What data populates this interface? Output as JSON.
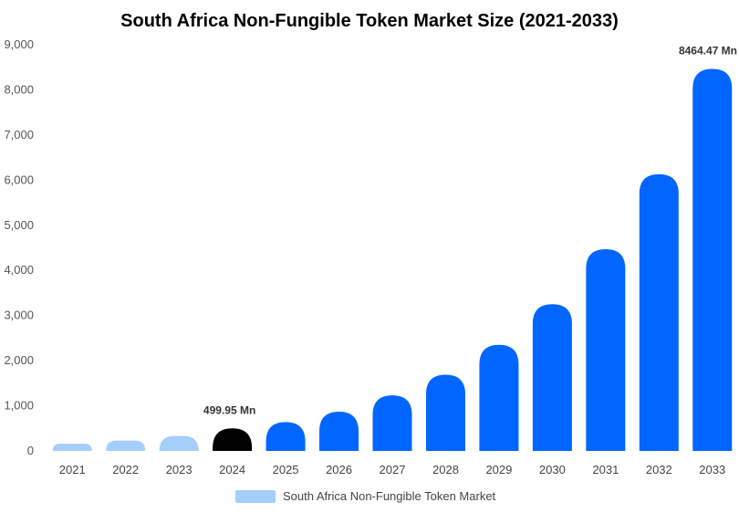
{
  "chart_data": {
    "type": "bar",
    "title": "South Africa Non-Fungible Token Market Size (2021-2033)",
    "xlabel": "",
    "ylabel": "",
    "ylim": [
      0,
      9000
    ],
    "yticks": [
      0,
      1000,
      2000,
      3000,
      4000,
      5000,
      6000,
      7000,
      8000,
      9000
    ],
    "ytick_labels": [
      "0",
      "1,000",
      "2,000",
      "3,000",
      "4,000",
      "5,000",
      "6,000",
      "7,000",
      "8,000",
      "9,000"
    ],
    "categories": [
      "2021",
      "2022",
      "2023",
      "2024",
      "2025",
      "2026",
      "2027",
      "2028",
      "2029",
      "2030",
      "2031",
      "2032",
      "2033"
    ],
    "series": [
      {
        "name": "South Africa Non-Fungible Token Market",
        "values": [
          160,
          230,
          330,
          499.95,
          640,
          870,
          1230,
          1690,
          2350,
          3250,
          4470,
          6130,
          8464.47
        ]
      }
    ],
    "bar_colors": [
      "#a4cffa",
      "#a4cffa",
      "#a4cffa",
      "#000000",
      "#0066ff",
      "#0066ff",
      "#0066ff",
      "#0066ff",
      "#0066ff",
      "#0066ff",
      "#0066ff",
      "#0066ff",
      "#0066ff"
    ],
    "data_labels": [
      {
        "category": "2024",
        "text": "499.95 Mn"
      },
      {
        "category": "2033",
        "text": "8464.47 Mn"
      }
    ],
    "grid": false,
    "legend": {
      "position": "bottom",
      "color": "#a4cffa",
      "label": "South Africa Non-Fungible Token Market"
    }
  }
}
